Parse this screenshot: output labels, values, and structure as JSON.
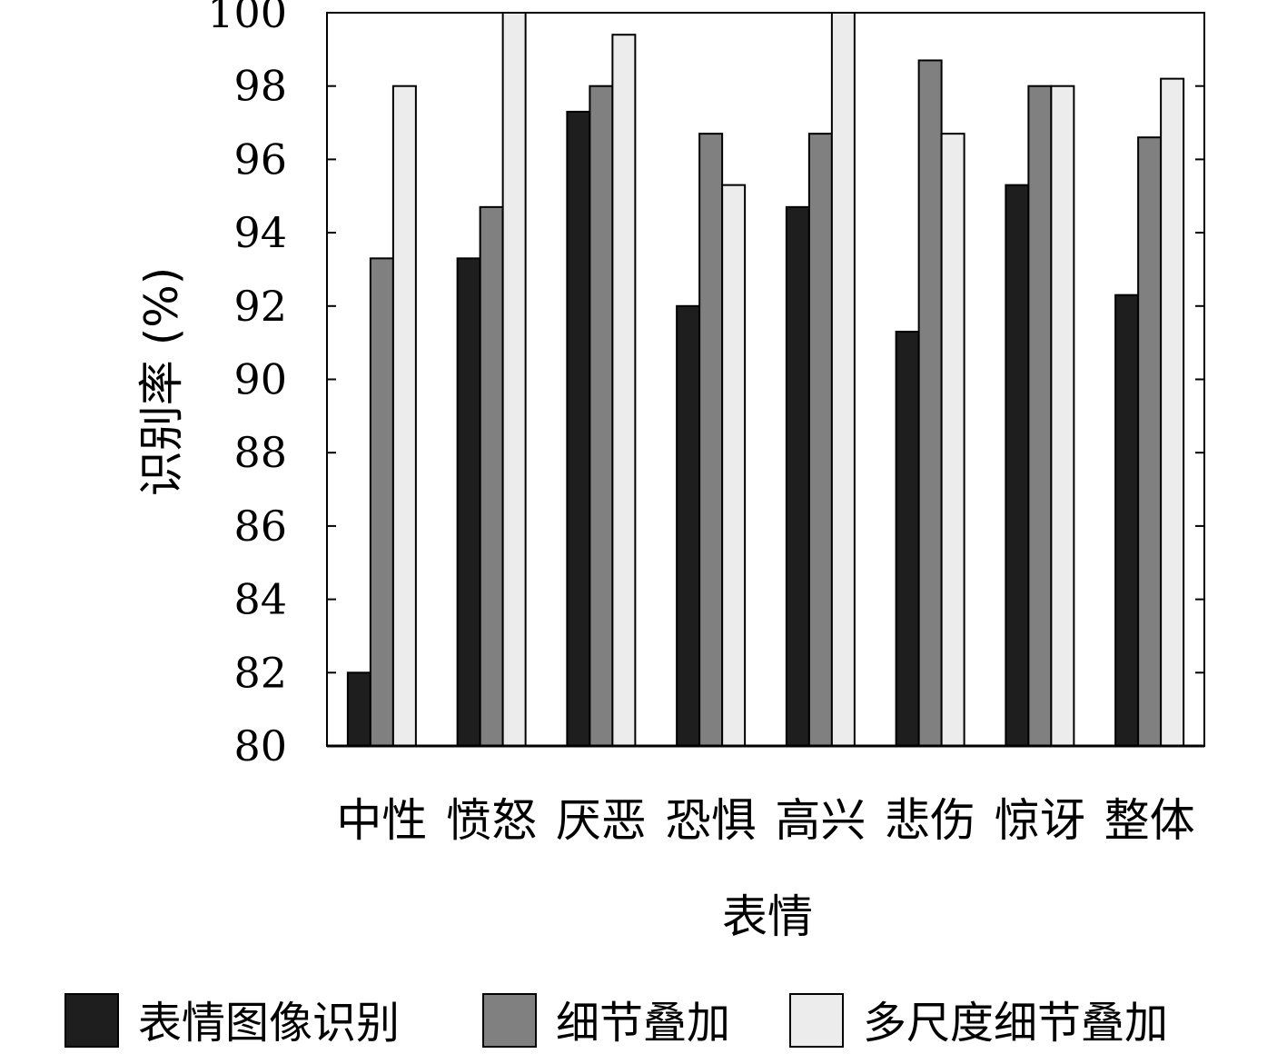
{
  "chart_data": {
    "type": "bar",
    "title": "",
    "xlabel": "表情",
    "ylabel": "识别率 (%)",
    "ylim": [
      80,
      100
    ],
    "yticks": [
      80,
      82,
      84,
      86,
      88,
      90,
      92,
      94,
      96,
      98,
      100
    ],
    "categories": [
      "中性",
      "愤怒",
      "厌恶",
      "恐惧",
      "高兴",
      "悲伤",
      "惊讶",
      "整体"
    ],
    "series": [
      {
        "name": "表情图像识别",
        "color": "#1e1e1e",
        "values": [
          82.0,
          93.3,
          97.3,
          92.0,
          94.7,
          91.3,
          95.3,
          92.3
        ]
      },
      {
        "name": "细节叠加",
        "color": "#808080",
        "values": [
          93.3,
          94.7,
          98.0,
          96.7,
          96.7,
          98.7,
          98.0,
          96.6
        ]
      },
      {
        "name": "多尺度细节叠加",
        "color": "#ececec",
        "values": [
          98.0,
          100.0,
          99.4,
          95.3,
          100.0,
          96.7,
          98.0,
          98.2
        ]
      }
    ],
    "grid": false,
    "legend_position": "bottom"
  }
}
